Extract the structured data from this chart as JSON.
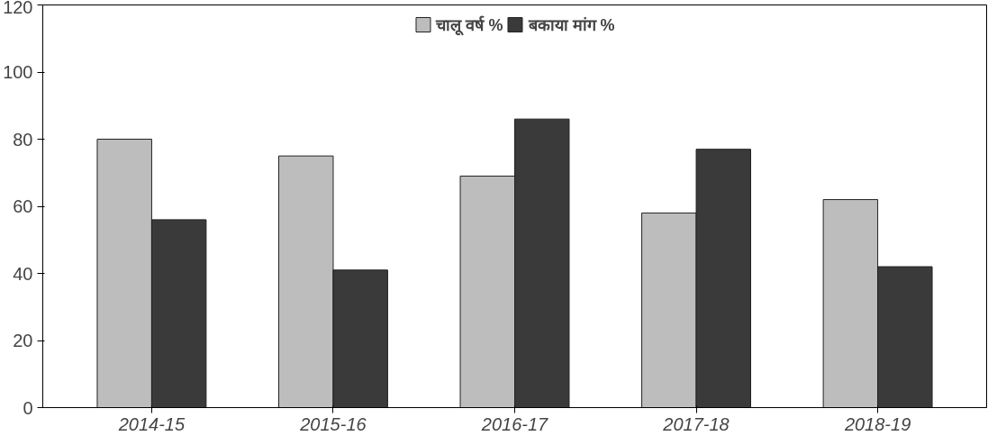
{
  "chart_data": {
    "type": "bar",
    "categories": [
      "2014-15",
      "2015-16",
      "2016-17",
      "2017-18",
      "2018-19"
    ],
    "series": [
      {
        "name": "चालू वर्ष %",
        "color": "#bdbdbd",
        "values": [
          80,
          75,
          69,
          58,
          62
        ]
      },
      {
        "name": "बकाया मांग %",
        "color": "#3a3a3a",
        "values": [
          56,
          41,
          86,
          77,
          42
        ]
      }
    ],
    "ylim": [
      0,
      120
    ],
    "yticks": [
      0,
      20,
      40,
      60,
      80,
      100,
      120
    ],
    "grid": false,
    "legend": "top"
  }
}
